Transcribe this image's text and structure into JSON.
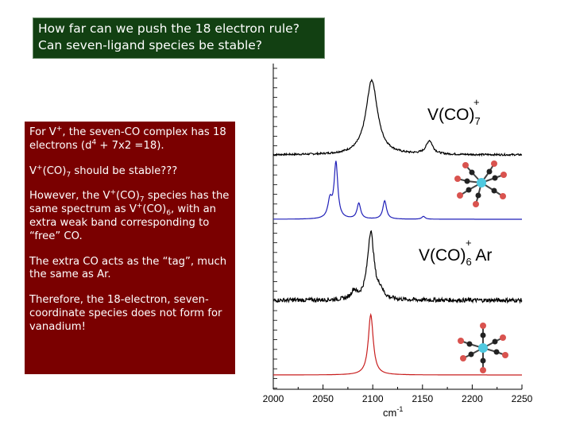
{
  "title": {
    "line1": "How far can we push the 18 electron rule?",
    "line2": "Can seven-ligand species be stable?"
  },
  "explanation": {
    "p1_a": "For V",
    "p1_b": ", the seven-CO complex has 18 electrons (d",
    "p1_c": " + 7x2 =18).",
    "p2_a": "V",
    "p2_b": "(CO)",
    "p2_c": " should be stable???",
    "p3_a": "However, the V",
    "p3_b": "(CO)",
    "p3_c": " species has the same spectrum as V",
    "p3_d": "(CO)",
    "p3_e": ", with an extra weak band corresponding to “free” CO.",
    "p4": "The extra CO acts as the “tag”, much the same as Ar.",
    "p5": "Therefore, the 18-electron, seven-coordinate species does not form for vanadium!",
    "plus": "+",
    "four": "4",
    "seven": "7",
    "six": "6"
  },
  "chart_data": {
    "type": "line",
    "xlabel": "cm",
    "xlabel_sup": "-1",
    "xlim": [
      2000,
      2250
    ],
    "xticks": [
      "2000",
      "2050",
      "2100",
      "2150",
      "2200",
      "2250"
    ],
    "annotations": {
      "top": {
        "base": "V(CO)",
        "sub": "7",
        "sup": "+"
      },
      "middle": {
        "base": "V(CO)",
        "sub": "6",
        "sup": "+",
        "tail": " Ar"
      }
    },
    "series": [
      {
        "color": "#000000",
        "baseline": 0.0,
        "noise": 0.012,
        "peaks": [
          [
            2099,
            7,
            1.0
          ],
          [
            2157,
            4,
            0.18
          ]
        ]
      },
      {
        "color": "#1f1fb8",
        "baseline": 0.0,
        "noise": 0.0,
        "peaks": [
          [
            2063,
            2.2,
            1.0
          ],
          [
            2057,
            2.5,
            0.32
          ],
          [
            2086,
            2.2,
            0.28
          ],
          [
            2112,
            2.2,
            0.33
          ],
          [
            2151,
            2,
            0.05
          ]
        ]
      },
      {
        "color": "#000000",
        "baseline": 0.0,
        "noise": 0.03,
        "peaks": [
          [
            2098,
            4,
            1.0
          ],
          [
            2081,
            3,
            0.12
          ],
          [
            2108,
            3,
            0.1
          ]
        ]
      },
      {
        "color": "#c81e1e",
        "baseline": 0.0,
        "noise": 0.0,
        "peaks": [
          [
            2098,
            3,
            1.0
          ]
        ]
      }
    ]
  }
}
